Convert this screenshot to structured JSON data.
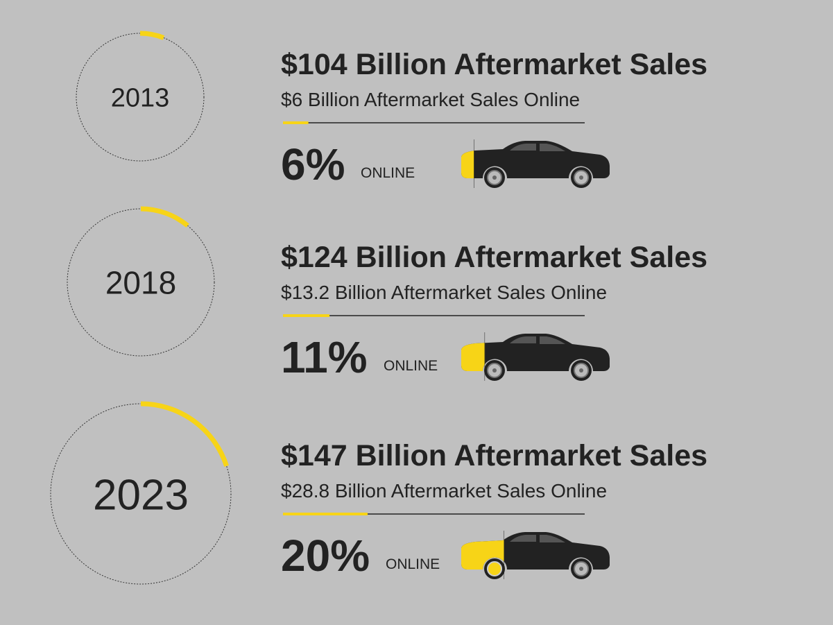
{
  "rows": [
    {
      "year": "2013",
      "title": "$104 Billion Aftermarket Sales",
      "subtitle": "$6 Billion Aftermarket Sales Online",
      "share": {
        "value": 6,
        "label": "6%"
      },
      "online": "ONLINE"
    },
    {
      "year": "2018",
      "title": "$124 Billion Aftermarket Sales",
      "subtitle": "$13.2 Billion Aftermarket Sales Online",
      "share": {
        "value": 11,
        "label": "11%"
      },
      "online": "ONLINE"
    },
    {
      "year": "2023",
      "title": "$147 Billion Aftermarket Sales",
      "subtitle": "$28.8 Billion Aftermarket Sales Online",
      "share": {
        "value": 20,
        "label": "20%"
      },
      "online": "ONLINE"
    }
  ]
}
